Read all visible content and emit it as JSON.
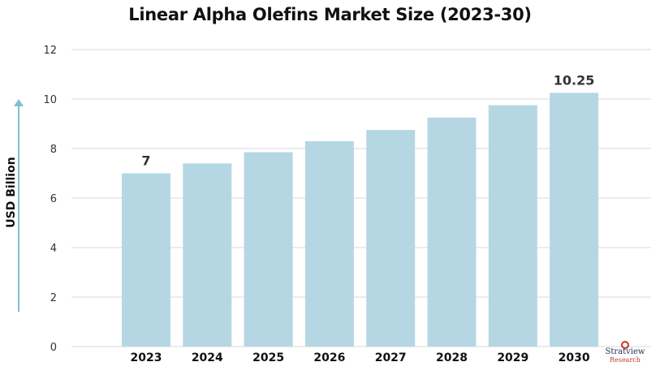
{
  "chart_data": {
    "type": "bar",
    "title": "Linear Alpha Olefins Market Size (2023-30)",
    "xlabel": "",
    "ylabel": "USD Billion",
    "categories": [
      "2023",
      "2024",
      "2025",
      "2026",
      "2027",
      "2028",
      "2029",
      "2030"
    ],
    "values": [
      7,
      7.4,
      7.85,
      8.3,
      8.75,
      9.25,
      9.75,
      10.25
    ],
    "data_labels": [
      "7",
      "",
      "",
      "",
      "",
      "",
      "",
      "10.25"
    ],
    "ylim": [
      0,
      12
    ],
    "yticks": [
      "0",
      "2",
      "4",
      "6",
      "8",
      "10",
      "12"
    ],
    "grid": true,
    "bar_color": "#b5d7e3",
    "grid_color": "#d9d9d9",
    "arrow_color": "#7fbfd0"
  },
  "logo": {
    "name": "Stratview",
    "sub": "Research"
  }
}
